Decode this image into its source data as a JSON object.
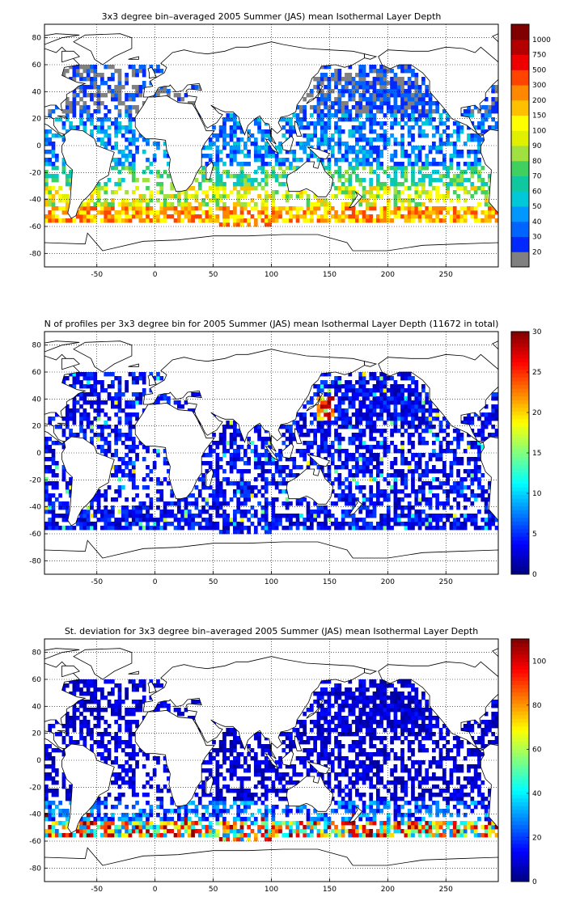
{
  "chart_data": [
    {
      "type": "heatmap",
      "title": "3x3 degree bin–averaged 2005 Summer (JAS) mean Isothermal Layer Depth",
      "xlabel": "",
      "ylabel": "",
      "xlim": [
        -95,
        295
      ],
      "ylim": [
        -90,
        90
      ],
      "x_ticks": [
        -50,
        0,
        50,
        100,
        150,
        200,
        250
      ],
      "y_ticks": [
        80,
        60,
        40,
        20,
        0,
        -20,
        -40,
        -60,
        -80
      ],
      "grid": true,
      "bin_size_deg": 3,
      "colorbar": {
        "scale": "categorical",
        "tick_labels": [
          "20",
          "30",
          "40",
          "50",
          "60",
          "70",
          "80",
          "90",
          "100",
          "150",
          "200",
          "300",
          "500",
          "750",
          "1000"
        ],
        "colors": [
          "#808080",
          "#0028ff",
          "#0064ff",
          "#0098ff",
          "#00c8d8",
          "#10c8a0",
          "#40d060",
          "#a0e040",
          "#e0f000",
          "#ffff00",
          "#ffc000",
          "#ff8800",
          "#ff4400",
          "#ee0000",
          "#b40000",
          "#800000"
        ]
      },
      "dominant_values_by_region": [
        {
          "region": "North Atlantic / North Pacific high latitudes",
          "class": "20-40"
        },
        {
          "region": "Tropics (20S-20N)",
          "class": "30-60"
        },
        {
          "region": "Subtropical southern oceans (20S-45S)",
          "class": "60-150"
        },
        {
          "region": "Southern Ocean band (45S-58S)",
          "class": "150-500"
        }
      ]
    },
    {
      "type": "heatmap",
      "title": "N of profiles per 3x3 degree bin for 2005 Summer (JAS) mean Isothermal Layer Depth  (11672 in total)",
      "xlabel": "",
      "ylabel": "",
      "xlim": [
        -95,
        295
      ],
      "ylim": [
        -90,
        90
      ],
      "x_ticks": [
        -50,
        0,
        50,
        100,
        150,
        200,
        250
      ],
      "y_ticks": [
        80,
        60,
        40,
        20,
        0,
        -20,
        -40,
        -60,
        -80
      ],
      "grid": true,
      "bin_size_deg": 3,
      "total_profiles": 11672,
      "colorbar": {
        "scale": "linear",
        "min": 0,
        "max": 30,
        "ticks": [
          0,
          5,
          10,
          15,
          20,
          25,
          30
        ],
        "colormap": "jet"
      },
      "dominant_values_by_region": [
        {
          "region": "Open ocean (most bins)",
          "range": [
            1,
            6
          ]
        },
        {
          "region": "Northwest Pacific near Japan",
          "range": [
            15,
            30
          ]
        },
        {
          "region": "Mediterranean / Bay of Bengal scattered",
          "range": [
            10,
            20
          ]
        }
      ]
    },
    {
      "type": "heatmap",
      "title": "St. deviation for 3x3 degree bin–averaged 2005 Summer (JAS) mean Isothermal Layer Depth",
      "xlabel": "",
      "ylabel": "",
      "xlim": [
        -95,
        295
      ],
      "ylim": [
        -90,
        90
      ],
      "x_ticks": [
        -50,
        0,
        50,
        100,
        150,
        200,
        250
      ],
      "y_ticks": [
        80,
        60,
        40,
        20,
        0,
        -20,
        -40,
        -60,
        -80
      ],
      "grid": true,
      "bin_size_deg": 3,
      "colorbar": {
        "scale": "linear",
        "min": 0,
        "max": 110,
        "ticks": [
          0,
          20,
          40,
          60,
          80,
          100
        ],
        "colormap": "jet"
      },
      "dominant_values_by_region": [
        {
          "region": "Northern and tropical oceans",
          "range": [
            0,
            15
          ]
        },
        {
          "region": "Subtropical southern oceans",
          "range": [
            10,
            35
          ]
        },
        {
          "region": "Southern Ocean band (45S-58S)",
          "range": [
            30,
            110
          ]
        }
      ]
    }
  ]
}
